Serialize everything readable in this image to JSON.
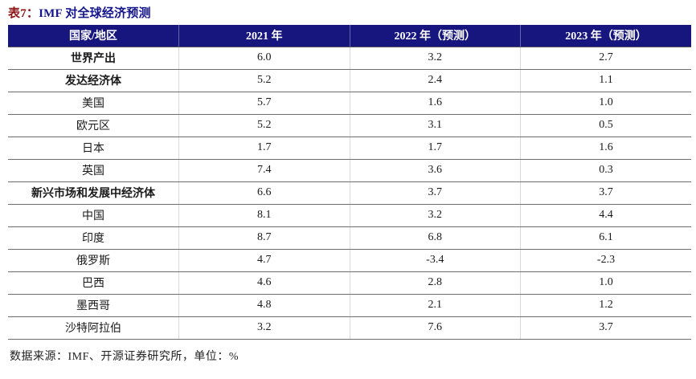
{
  "title": {
    "prefix": "表7：",
    "text": "IMF 对全球经济预测"
  },
  "table": {
    "columns": [
      "国家/地区",
      "2021 年",
      "2022 年（预测）",
      "2023 年（预测）"
    ],
    "rows": [
      {
        "label": "世界产出",
        "bold": true,
        "values": [
          "6.0",
          "3.2",
          "2.7"
        ]
      },
      {
        "label": "发达经济体",
        "bold": true,
        "values": [
          "5.2",
          "2.4",
          "1.1"
        ]
      },
      {
        "label": "美国",
        "bold": false,
        "values": [
          "5.7",
          "1.6",
          "1.0"
        ]
      },
      {
        "label": "欧元区",
        "bold": false,
        "values": [
          "5.2",
          "3.1",
          "0.5"
        ]
      },
      {
        "label": "日本",
        "bold": false,
        "values": [
          "1.7",
          "1.7",
          "1.6"
        ]
      },
      {
        "label": "英国",
        "bold": false,
        "values": [
          "7.4",
          "3.6",
          "0.3"
        ]
      },
      {
        "label": "新兴市场和发展中经济体",
        "bold": true,
        "values": [
          "6.6",
          "3.7",
          "3.7"
        ]
      },
      {
        "label": "中国",
        "bold": false,
        "values": [
          "8.1",
          "3.2",
          "4.4"
        ]
      },
      {
        "label": "印度",
        "bold": false,
        "values": [
          "8.7",
          "6.8",
          "6.1"
        ]
      },
      {
        "label": "俄罗斯",
        "bold": false,
        "values": [
          "4.7",
          "-3.4",
          "-2.3"
        ]
      },
      {
        "label": "巴西",
        "bold": false,
        "values": [
          "4.6",
          "2.8",
          "1.0"
        ]
      },
      {
        "label": "墨西哥",
        "bold": false,
        "values": [
          "4.8",
          "2.1",
          "1.2"
        ]
      },
      {
        "label": "沙特阿拉伯",
        "bold": false,
        "values": [
          "3.2",
          "7.6",
          "3.7"
        ]
      }
    ]
  },
  "footer": {
    "source": "数据来源：IMF、开源证券研究所，单位：%"
  },
  "colors": {
    "header_bg": "#16167E",
    "header_text": "#FFFFFF",
    "title_prefix": "#8B1414",
    "title_main": "#16168C",
    "row_border": "#6E6E6E",
    "col_border": "#D9D9D9",
    "footer_text": "#222222"
  }
}
